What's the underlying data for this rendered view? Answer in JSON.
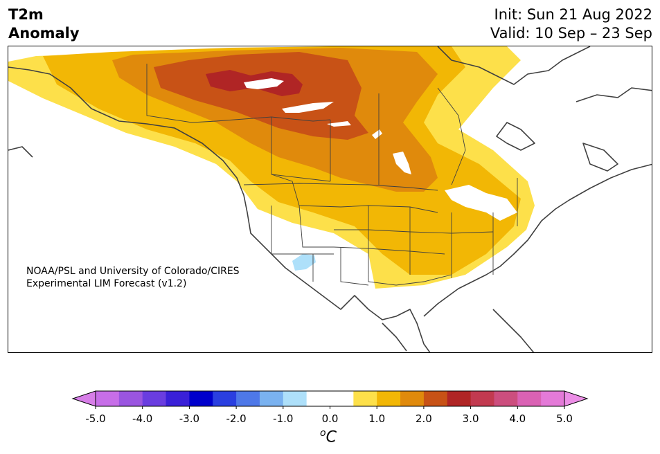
{
  "title": {
    "line1": "T2m",
    "line2": "Anomaly"
  },
  "dates": {
    "init": "Init: Sun 21 Aug 2022",
    "valid": "Valid: 10 Sep – 23 Sep"
  },
  "credit": {
    "line1": "NOAA/PSL and University of Colorado/CIRES",
    "line2": "Experimental LIM Forecast (v1.2)"
  },
  "colorbar": {
    "unit_base": "C",
    "unit_sup": "o",
    "tick_labels": [
      "-5.0",
      "-4.0",
      "-3.0",
      "-2.0",
      "-1.0",
      "0.0",
      "1.0",
      "2.0",
      "3.0",
      "4.0",
      "5.0"
    ],
    "bin_colors": [
      "#c76ee8",
      "#9a55e0",
      "#6a3de0",
      "#3a20d8",
      "#0000cc",
      "#2a3fe0",
      "#4e78e8",
      "#7ab2f0",
      "#aee0fa",
      "#ffffff",
      "#ffffff",
      "#fde04a",
      "#f2b705",
      "#e08a0c",
      "#c85216",
      "#b02525",
      "#c23a50",
      "#cc4e7e",
      "#da62b4",
      "#e47ad8"
    ],
    "under_color": "#d77ee8",
    "over_color": "#ec8ee6"
  },
  "legend_colors": {
    "plus_0_5_to_1": "#fde04a",
    "plus_1_to_1_5": "#f2b705",
    "plus_1_5_to_2": "#e08a0c",
    "plus_2_to_2_5": "#c85216",
    "plus_2_5_to_3": "#b02525",
    "minus_0_5_to_1": "#aee0fa"
  }
}
